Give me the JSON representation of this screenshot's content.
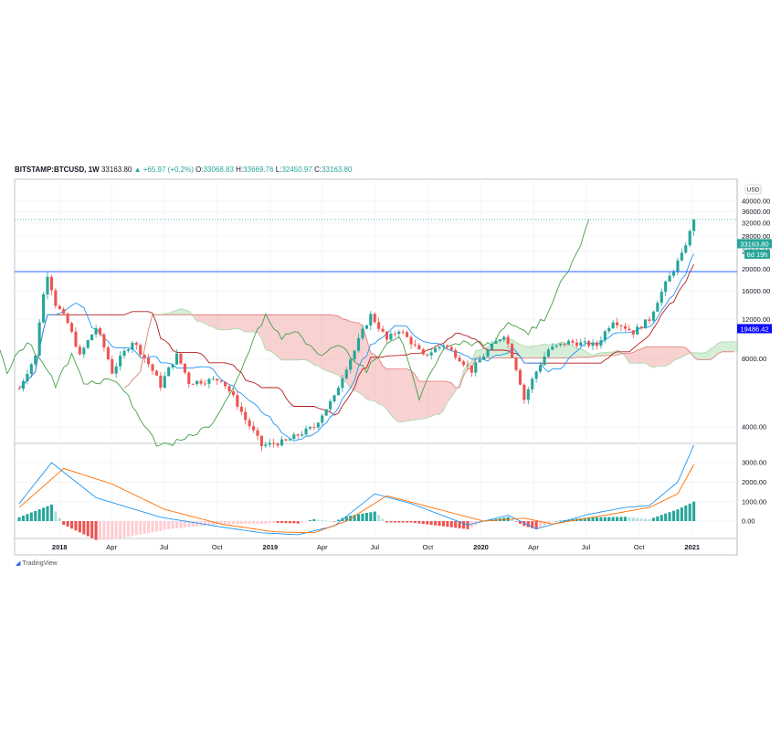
{
  "header": {
    "symbol": "BITSTAMP:BTCUSD, 1W",
    "last": "33163.80",
    "change": "▲ +65.97 (+0.2%)",
    "o_label": "O:",
    "o": "33068.83",
    "h_label": "H:",
    "h": "33669.76",
    "l_label": "L:",
    "l": "32450.97",
    "c_label": "C:",
    "c": "33163.80"
  },
  "currency": "USD",
  "price_tag": "33163.80",
  "countdown": "6d 19h",
  "hline_tag": "19486.42",
  "footer": "TradingView",
  "colors": {
    "up": "#26a69a",
    "down": "#ef5350",
    "hline": "#2962ff",
    "tenkan": "#2196f3",
    "kijun": "#b71c1c",
    "lagging": "#43a047",
    "cloud_up": "#a5d6a7",
    "cloud_down": "#ef9a9a",
    "macd": "#2196f3",
    "signal": "#ff6d00",
    "hist_up_strong": "#26a69a",
    "hist_up_weak": "#b2dfdb",
    "hist_down_strong": "#ef5350",
    "hist_down_weak": "#ffcdd2"
  },
  "chart_data": {
    "type": "candlestick",
    "interval": "1W",
    "price_axis": {
      "scale": "log",
      "ticks": [
        4000,
        8000,
        12000,
        16000,
        20000,
        24000,
        28000,
        32000,
        36000,
        40000
      ],
      "tick_labels": [
        "4000.00",
        "8000.00",
        "12000.00",
        "16000.00",
        "20000.00",
        "24000.00",
        "28000.00",
        "32000.00",
        "36000.00",
        "40000.00"
      ]
    },
    "macd_axis": {
      "ticks": [
        0,
        1000,
        2000,
        3000
      ],
      "tick_labels": [
        "0.00",
        "1000.00",
        "2000.00",
        "3000.00"
      ]
    },
    "time_axis": [
      {
        "date": "2018-01-01",
        "label": "2018",
        "bold": true
      },
      {
        "date": "2018-04-01",
        "label": "Apr"
      },
      {
        "date": "2018-07-01",
        "label": "Jul"
      },
      {
        "date": "2018-10-01",
        "label": "Oct"
      },
      {
        "date": "2019-01-01",
        "label": "2019",
        "bold": true
      },
      {
        "date": "2019-04-01",
        "label": "Apr"
      },
      {
        "date": "2019-07-01",
        "label": "Jul"
      },
      {
        "date": "2019-10-01",
        "label": "Oct"
      },
      {
        "date": "2020-01-01",
        "label": "2020",
        "bold": true
      },
      {
        "date": "2020-04-01",
        "label": "Apr"
      },
      {
        "date": "2020-07-01",
        "label": "Jul"
      },
      {
        "date": "2020-10-01",
        "label": "Oct"
      },
      {
        "date": "2021-01-01",
        "label": "2021",
        "bold": true
      }
    ],
    "x_range": [
      "2017-10-15",
      "2021-03-20"
    ],
    "last_price": 33163.8,
    "horizontal_line": 19486.42,
    "close_path": [
      [
        "2017-10-23",
        5900
      ],
      [
        "2017-11-20",
        8200
      ],
      [
        "2017-12-11",
        19000
      ],
      [
        "2017-12-25",
        14000
      ],
      [
        "2018-01-15",
        11500
      ],
      [
        "2018-02-05",
        8200
      ],
      [
        "2018-03-05",
        11000
      ],
      [
        "2018-04-02",
        7000
      ],
      [
        "2018-05-07",
        9600
      ],
      [
        "2018-06-25",
        6100
      ],
      [
        "2018-07-23",
        8300
      ],
      [
        "2018-08-13",
        6300
      ],
      [
        "2018-10-08",
        6500
      ],
      [
        "2018-11-19",
        4300
      ],
      [
        "2018-12-17",
        3300
      ],
      [
        "2019-01-28",
        3450
      ],
      [
        "2019-03-18",
        4000
      ],
      [
        "2019-04-22",
        5400
      ],
      [
        "2019-05-27",
        8700
      ],
      [
        "2019-06-24",
        12500
      ],
      [
        "2019-07-22",
        9700
      ],
      [
        "2019-08-12",
        10800
      ],
      [
        "2019-09-23",
        8200
      ],
      [
        "2019-10-28",
        9300
      ],
      [
        "2019-12-16",
        7100
      ],
      [
        "2020-02-10",
        10300
      ],
      [
        "2020-03-16",
        5300
      ],
      [
        "2020-04-27",
        8800
      ],
      [
        "2020-06-01",
        9500
      ],
      [
        "2020-07-20",
        9200
      ],
      [
        "2020-08-17",
        11900
      ],
      [
        "2020-09-21",
        10500
      ],
      [
        "2020-10-19",
        12000
      ],
      [
        "2020-11-09",
        15800
      ],
      [
        "2020-11-23",
        18500
      ],
      [
        "2020-12-14",
        23000
      ],
      [
        "2020-12-28",
        29000
      ],
      [
        "2021-01-04",
        33163
      ]
    ],
    "macd_path": [
      [
        "2017-10-23",
        900
      ],
      [
        "2017-12-18",
        3000
      ],
      [
        "2018-03-05",
        1200
      ],
      [
        "2018-06-25",
        200
      ],
      [
        "2018-10-08",
        -300
      ],
      [
        "2018-12-17",
        -600
      ],
      [
        "2019-02-18",
        -700
      ],
      [
        "2019-04-22",
        -250
      ],
      [
        "2019-07-01",
        1400
      ],
      [
        "2019-09-02",
        900
      ],
      [
        "2019-12-09",
        -200
      ],
      [
        "2020-02-17",
        300
      ],
      [
        "2020-04-06",
        -400
      ],
      [
        "2020-07-06",
        350
      ],
      [
        "2020-09-07",
        700
      ],
      [
        "2020-10-19",
        800
      ],
      [
        "2020-12-07",
        2000
      ],
      [
        "2021-01-04",
        3900
      ]
    ],
    "signal_path": [
      [
        "2017-10-23",
        700
      ],
      [
        "2018-01-08",
        2700
      ],
      [
        "2018-04-02",
        1900
      ],
      [
        "2018-07-02",
        600
      ],
      [
        "2018-10-08",
        -150
      ],
      [
        "2019-01-07",
        -550
      ],
      [
        "2019-03-18",
        -600
      ],
      [
        "2019-05-13",
        0
      ],
      [
        "2019-07-22",
        1300
      ],
      [
        "2019-10-07",
        700
      ],
      [
        "2020-01-06",
        0
      ],
      [
        "2020-03-16",
        150
      ],
      [
        "2020-05-04",
        -150
      ],
      [
        "2020-08-03",
        300
      ],
      [
        "2020-10-19",
        700
      ],
      [
        "2020-12-07",
        1400
      ],
      [
        "2021-01-04",
        2900
      ]
    ]
  }
}
